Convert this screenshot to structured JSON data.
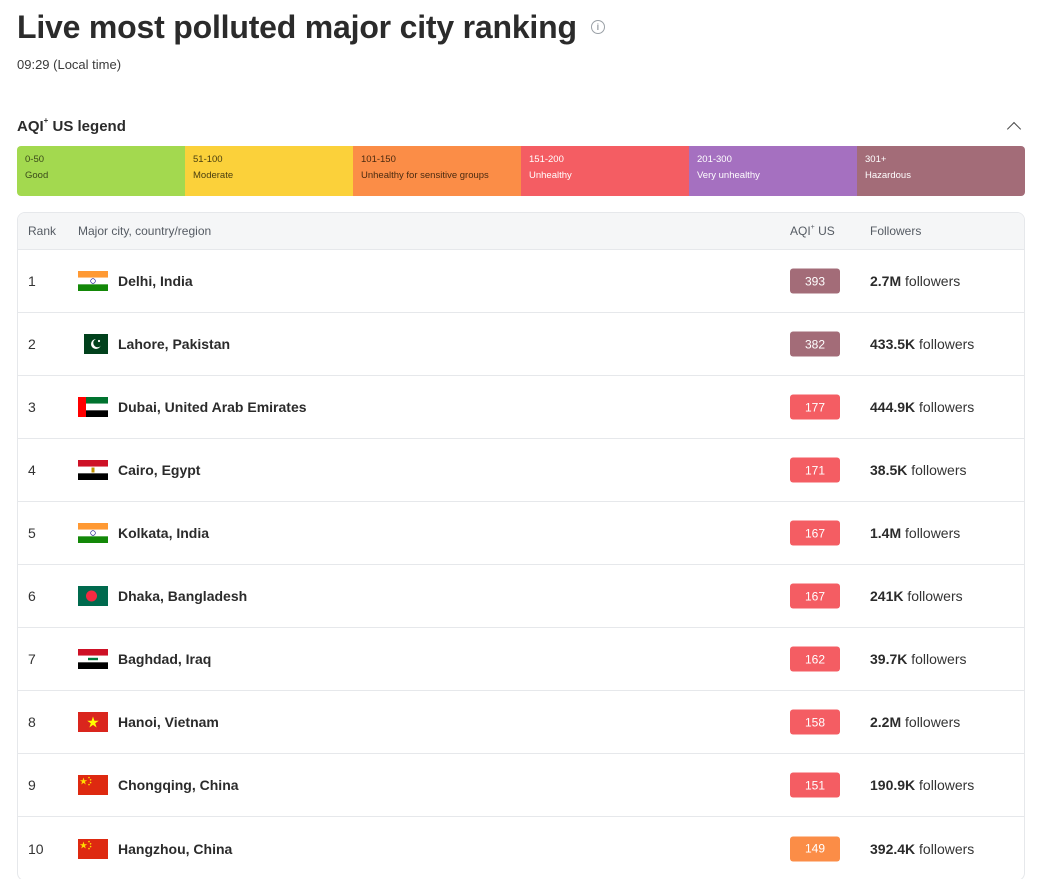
{
  "header": {
    "title": "Live most polluted major city ranking",
    "local_time": "09:29 (Local time)"
  },
  "legend": {
    "title_main": "AQI",
    "title_sup": "+",
    "title_rest": " US legend",
    "segments": [
      {
        "range": "0-50",
        "label": "Good",
        "color": "#a3d94f",
        "text_color": "#3a4a1a"
      },
      {
        "range": "51-100",
        "label": "Moderate",
        "color": "#fbd13a",
        "text_color": "#4a3f10"
      },
      {
        "range": "101-150",
        "label": "Unhealthy for sensitive groups",
        "color": "#fb8d47",
        "text_color": "#4a2a10"
      },
      {
        "range": "151-200",
        "label": "Unhealthy",
        "color": "#f45d63",
        "text_color": "#ffffff"
      },
      {
        "range": "201-300",
        "label": "Very unhealthy",
        "color": "#a570c0",
        "text_color": "#ffffff"
      },
      {
        "range": "301+",
        "label": "Hazardous",
        "color": "#a36c78",
        "text_color": "#ffffff"
      }
    ]
  },
  "table": {
    "headers": {
      "rank": "Rank",
      "city": "Major city, country/region",
      "aqi_main": "AQI",
      "aqi_sup": "+",
      "aqi_rest": " US",
      "followers": "Followers"
    },
    "followers_suffix": " followers",
    "rows": [
      {
        "rank": "1",
        "flag": "india",
        "city": "Delhi, India",
        "aqi": "393",
        "aqi_color": "#a36c78",
        "followers": "2.7M"
      },
      {
        "rank": "2",
        "flag": "pakistan",
        "city": "Lahore, Pakistan",
        "aqi": "382",
        "aqi_color": "#a36c78",
        "followers": "433.5K"
      },
      {
        "rank": "3",
        "flag": "uae",
        "city": "Dubai, United Arab Emirates",
        "aqi": "177",
        "aqi_color": "#f45d63",
        "followers": "444.9K"
      },
      {
        "rank": "4",
        "flag": "egypt",
        "city": "Cairo, Egypt",
        "aqi": "171",
        "aqi_color": "#f45d63",
        "followers": "38.5K"
      },
      {
        "rank": "5",
        "flag": "india",
        "city": "Kolkata, India",
        "aqi": "167",
        "aqi_color": "#f45d63",
        "followers": "1.4M"
      },
      {
        "rank": "6",
        "flag": "bangladesh",
        "city": "Dhaka, Bangladesh",
        "aqi": "167",
        "aqi_color": "#f45d63",
        "followers": "241K"
      },
      {
        "rank": "7",
        "flag": "iraq",
        "city": "Baghdad, Iraq",
        "aqi": "162",
        "aqi_color": "#f45d63",
        "followers": "39.7K"
      },
      {
        "rank": "8",
        "flag": "vietnam",
        "city": "Hanoi, Vietnam",
        "aqi": "158",
        "aqi_color": "#f45d63",
        "followers": "2.2M"
      },
      {
        "rank": "9",
        "flag": "china",
        "city": "Chongqing, China",
        "aqi": "151",
        "aqi_color": "#f45d63",
        "followers": "190.9K"
      },
      {
        "rank": "10",
        "flag": "china",
        "city": "Hangzhou, China",
        "aqi": "149",
        "aqi_color": "#fb8d47",
        "followers": "392.4K"
      }
    ]
  }
}
